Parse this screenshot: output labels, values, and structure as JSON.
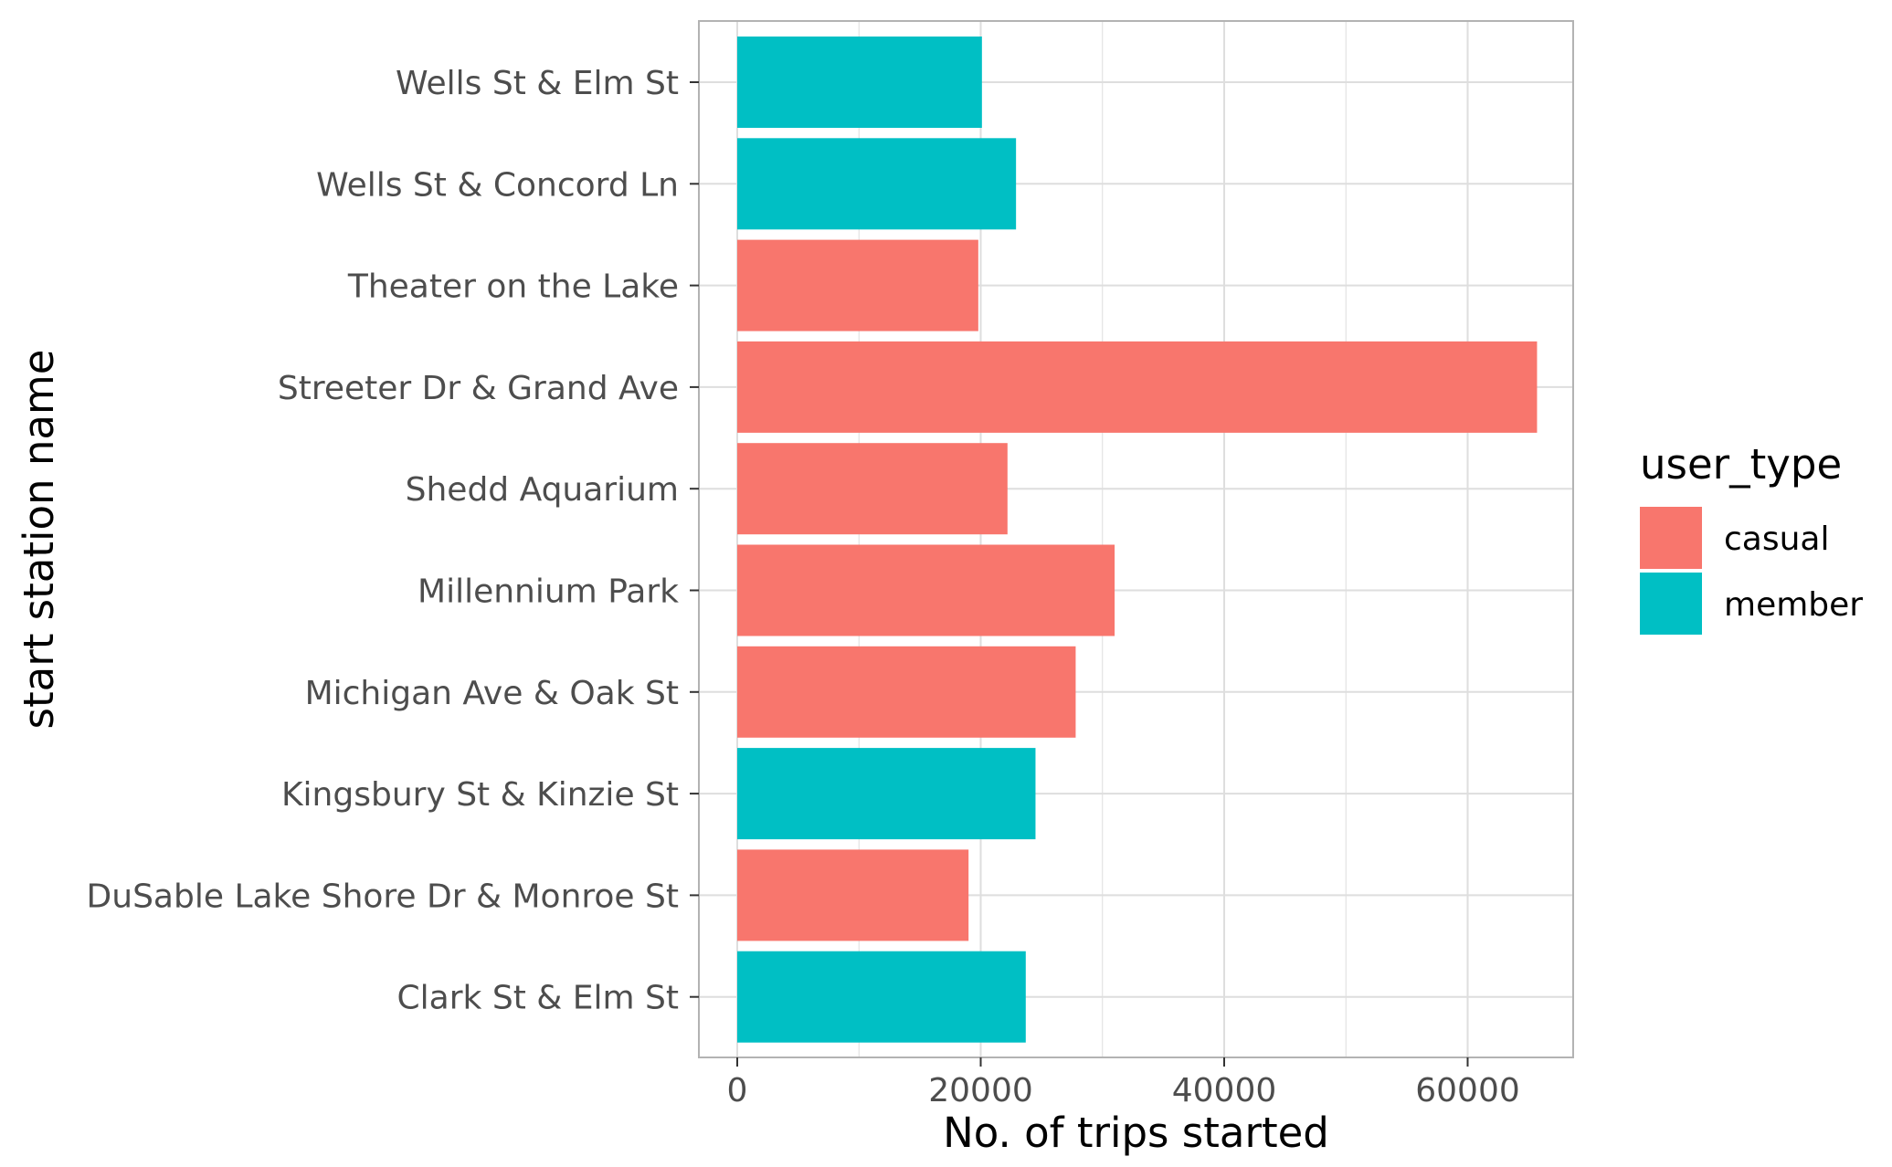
{
  "chart_data": {
    "type": "bar",
    "orientation": "horizontal",
    "xlabel": "No. of trips started",
    "ylabel": "start station name",
    "xlim": [
      -6500,
      137000
    ],
    "xticks": [
      0,
      20000,
      40000,
      60000
    ],
    "grid": true,
    "legend": {
      "title": "user_type",
      "placement": "right",
      "entries": [
        {
          "label": "casual",
          "color": "#F8766D"
        },
        {
          "label": "member",
          "color": "#00BFC4"
        }
      ]
    },
    "categories": [
      "Wells St & Elm St",
      "Wells St & Concord Ln",
      "Theater on the Lake",
      "Streeter Dr & Grand Ave",
      "Shedd Aquarium",
      "Millennium Park",
      "Michigan Ave & Oak St",
      "Kingsbury St & Kinzie St",
      "DuSable Lake Shore Dr & Monroe St",
      "Clark St & Elm St"
    ],
    "bars": [
      {
        "category": "Wells St & Elm St",
        "value": 20100,
        "user_type": "member"
      },
      {
        "category": "Wells St & Concord Ln",
        "value": 22900,
        "user_type": "member"
      },
      {
        "category": "Theater on the Lake",
        "value": 19800,
        "user_type": "casual"
      },
      {
        "category": "Streeter Dr & Grand Ave",
        "value": 65700,
        "user_type": "casual"
      },
      {
        "category": "Shedd Aquarium",
        "value": 22200,
        "user_type": "casual"
      },
      {
        "category": "Millennium Park",
        "value": 31000,
        "user_type": "casual"
      },
      {
        "category": "Michigan Ave & Oak St",
        "value": 27800,
        "user_type": "casual"
      },
      {
        "category": "Kingsbury St & Kinzie St",
        "value": 24500,
        "user_type": "member"
      },
      {
        "category": "DuSable Lake Shore Dr & Monroe St",
        "value": 19000,
        "user_type": "casual"
      },
      {
        "category": "Clark St & Elm St",
        "value": 23700,
        "user_type": "member"
      }
    ]
  }
}
